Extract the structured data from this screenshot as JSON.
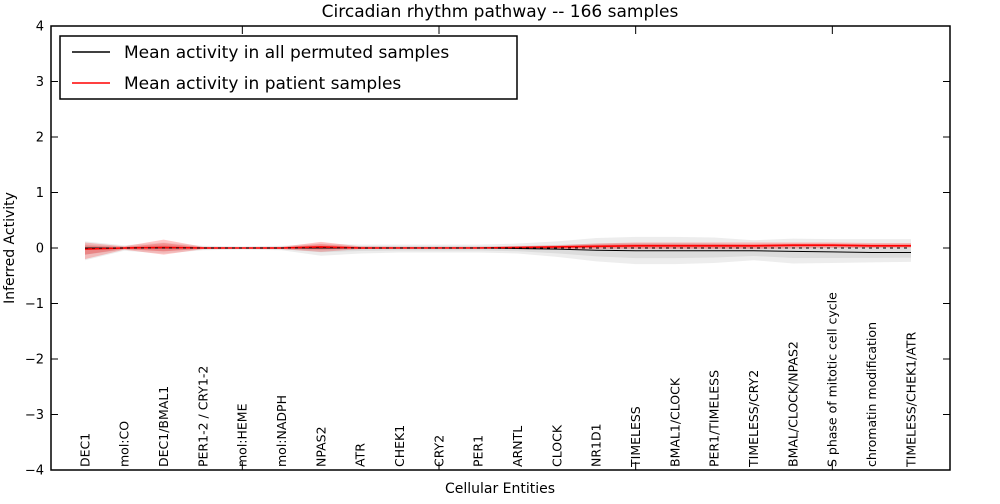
{
  "title": "Circadian rhythm pathway -- 166 samples",
  "axes": {
    "xlabel": "Cellular Entities",
    "ylabel": "Inferred Activity",
    "y_tick_labels": [
      "4",
      "3",
      "2",
      "1",
      "0",
      "−1",
      "−2",
      "−3",
      "−4"
    ],
    "y_tick_values": [
      4,
      3,
      2,
      1,
      0,
      -1,
      -2,
      -3,
      -4
    ]
  },
  "legend": {
    "entries": [
      {
        "label": "Mean activity in all permuted samples",
        "color": "#000000"
      },
      {
        "label": "Mean activity in patient samples",
        "color": "#ff0000"
      }
    ],
    "position": "upper left"
  },
  "chart_data": {
    "type": "line",
    "title": "Circadian rhythm pathway -- 166 samples",
    "xlabel": "Cellular Entities",
    "ylabel": "Inferred Activity",
    "ylim": [
      -4,
      4
    ],
    "grid": false,
    "legend_position": "upper left",
    "x_major_tick_indices": [
      4,
      9,
      14,
      19
    ],
    "categories": [
      "DEC1",
      "mol:CO",
      "DEC1/BMAL1",
      "PER1-2 / CRY1-2",
      "mol:HEME",
      "mol:NADPH",
      "NPAS2",
      "ATR",
      "CHEK1",
      "CRY2",
      "PER1",
      "ARNTL",
      "CLOCK",
      "NR1D1",
      "TIMELESS",
      "BMAL1/CLOCK",
      "PER1/TIMELESS",
      "TIMELESS/CRY2",
      "BMAL/CLOCK/NPAS2",
      "S phase of mitotic cell cycle",
      "chromatin modification",
      "TIMELESS/CHEK1/ATR"
    ],
    "series": [
      {
        "name": "Mean activity in all permuted samples",
        "color": "#000000",
        "band_color": "#000000",
        "values": [
          0,
          0,
          0,
          0,
          0,
          0,
          0,
          0,
          0,
          0,
          0,
          -0.01,
          -0.02,
          -0.04,
          -0.05,
          -0.05,
          -0.05,
          -0.05,
          -0.06,
          -0.07,
          -0.08,
          -0.08
        ],
        "band_lower": [
          -0.22,
          -0.05,
          -0.1,
          -0.04,
          -0.03,
          -0.04,
          -0.14,
          -0.1,
          -0.08,
          -0.08,
          -0.08,
          -0.1,
          -0.16,
          -0.24,
          -0.29,
          -0.29,
          -0.27,
          -0.22,
          -0.28,
          -0.27,
          -0.26,
          -0.25
        ],
        "band_upper": [
          0.12,
          0.05,
          0.1,
          0.04,
          0.03,
          0.04,
          0.08,
          0.06,
          0.06,
          0.06,
          0.06,
          0.08,
          0.12,
          0.18,
          0.2,
          0.2,
          0.19,
          0.14,
          0.17,
          0.16,
          0.16,
          0.16
        ]
      },
      {
        "name": "Mean activity in patient samples",
        "color": "#ff0000",
        "band_color": "#ff0000",
        "values": [
          -0.02,
          0,
          0.01,
          0,
          0,
          0,
          0.02,
          0,
          0,
          0,
          0,
          0.01,
          0.02,
          0.03,
          0.04,
          0.04,
          0.04,
          0.04,
          0.05,
          0.05,
          0.04,
          0.04
        ],
        "band_lower": [
          -0.2,
          -0.03,
          -0.12,
          -0.02,
          -0.01,
          -0.02,
          -0.07,
          -0.02,
          -0.01,
          -0.01,
          -0.01,
          -0.02,
          -0.03,
          -0.02,
          -0.02,
          -0.02,
          -0.02,
          -0.02,
          -0.01,
          0,
          0,
          0.01
        ],
        "band_upper": [
          0.1,
          0.03,
          0.15,
          0.02,
          0.01,
          0.02,
          0.11,
          0.03,
          0.02,
          0.02,
          0.02,
          0.03,
          0.05,
          0.08,
          0.1,
          0.1,
          0.1,
          0.1,
          0.1,
          0.1,
          0.09,
          0.09
        ]
      }
    ],
    "zero_line": {
      "y": 0,
      "style": "dashed",
      "color": "#000000"
    }
  }
}
